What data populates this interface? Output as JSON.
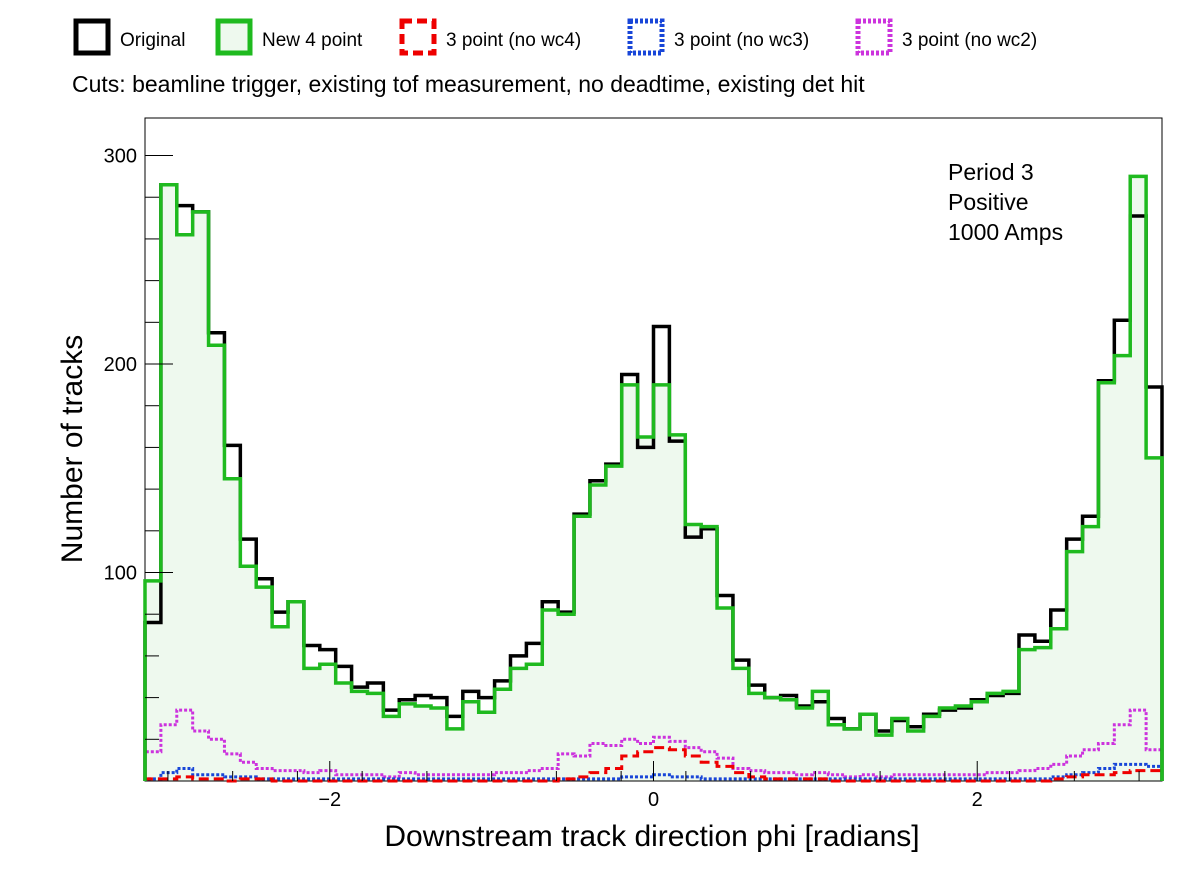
{
  "chart_data": {
    "type": "histogram",
    "xlabel": "Downstream track direction phi [radians]",
    "ylabel": "Number of tracks",
    "subtitle": "Cuts: beamline trigger, existing tof measurement, no deadtime, existing det hit",
    "annotation": [
      "Period 3",
      "Positive",
      "1000 Amps"
    ],
    "xlim": [
      -3.1416,
      3.1416
    ],
    "ylim": [
      0,
      318
    ],
    "xticks": [
      -2,
      0,
      2
    ],
    "xtick_labels": [
      "−2",
      "0",
      "2"
    ],
    "yticks": [
      100,
      200,
      300
    ],
    "ytick_labels": [
      "100",
      "200",
      "300"
    ],
    "bins": 64,
    "series": [
      {
        "name": "Original",
        "color": "#000000",
        "style": "solid",
        "values": [
          76,
          286,
          276,
          273,
          215,
          161,
          116,
          97,
          81,
          86,
          65,
          63,
          55,
          45,
          47,
          34,
          39,
          41,
          40,
          31,
          43,
          40,
          48,
          60,
          66,
          86,
          81,
          128,
          144,
          152,
          195,
          160,
          218,
          163,
          117,
          121,
          89,
          58,
          46,
          40,
          41,
          36,
          38,
          30,
          25,
          32,
          24,
          29,
          26,
          32,
          34,
          35,
          39,
          41,
          42,
          70,
          67,
          82,
          116,
          127,
          192,
          221,
          271,
          189
        ]
      },
      {
        "name": "New 4 point",
        "color": "#1fba1f",
        "style": "solid",
        "fill": "#eef9ee",
        "values": [
          96,
          286,
          262,
          273,
          209,
          145,
          103,
          93,
          74,
          86,
          54,
          56,
          47,
          43,
          42,
          31,
          37,
          36,
          35,
          25,
          38,
          33,
          44,
          54,
          56,
          82,
          80,
          127,
          142,
          151,
          190,
          165,
          190,
          166,
          123,
          122,
          83,
          54,
          42,
          40,
          39,
          35,
          43,
          27,
          25,
          32,
          22,
          30,
          24,
          31,
          35,
          36,
          38,
          42,
          43,
          63,
          64,
          73,
          110,
          122,
          191,
          204,
          290,
          155
        ]
      },
      {
        "name": "3 point (no wc4)",
        "color": "#ee0000",
        "style": "dashed",
        "values": [
          1,
          1,
          2,
          1,
          1,
          0,
          1,
          1,
          0,
          0,
          0,
          0,
          0,
          0,
          0,
          0,
          0,
          0,
          0,
          0,
          0,
          0,
          0,
          0,
          0,
          0,
          1,
          2,
          4,
          6,
          12,
          14,
          16,
          15,
          12,
          9,
          7,
          4,
          2,
          1,
          1,
          1,
          1,
          0,
          0,
          0,
          0,
          0,
          0,
          0,
          0,
          0,
          0,
          0,
          0,
          0,
          0,
          1,
          2,
          3,
          3,
          4,
          5,
          5
        ]
      },
      {
        "name": "3 point (no wc3)",
        "color": "#1846d8",
        "style": "dotted",
        "values": [
          1,
          4,
          6,
          3,
          3,
          2,
          2,
          1,
          1,
          1,
          1,
          1,
          1,
          1,
          1,
          1,
          1,
          1,
          1,
          1,
          1,
          1,
          1,
          1,
          1,
          1,
          1,
          1,
          1,
          1,
          2,
          2,
          3,
          2,
          2,
          1,
          1,
          1,
          1,
          1,
          1,
          1,
          1,
          1,
          1,
          1,
          1,
          1,
          1,
          1,
          1,
          1,
          1,
          1,
          1,
          1,
          1,
          2,
          3,
          4,
          6,
          8,
          8,
          7
        ]
      },
      {
        "name": "3 point (no wc2)",
        "color": "#cc33dd",
        "style": "dotted",
        "values": [
          14,
          27,
          34,
          24,
          20,
          13,
          9,
          6,
          5,
          5,
          4,
          5,
          3,
          3,
          3,
          2,
          4,
          3,
          3,
          3,
          3,
          3,
          4,
          4,
          5,
          6,
          13,
          12,
          18,
          17,
          20,
          18,
          21,
          19,
          16,
          14,
          11,
          6,
          5,
          4,
          4,
          3,
          4,
          3,
          2,
          3,
          2,
          3,
          3,
          3,
          3,
          3,
          3,
          4,
          4,
          5,
          6,
          8,
          12,
          15,
          18,
          27,
          34,
          15
        ]
      }
    ]
  }
}
